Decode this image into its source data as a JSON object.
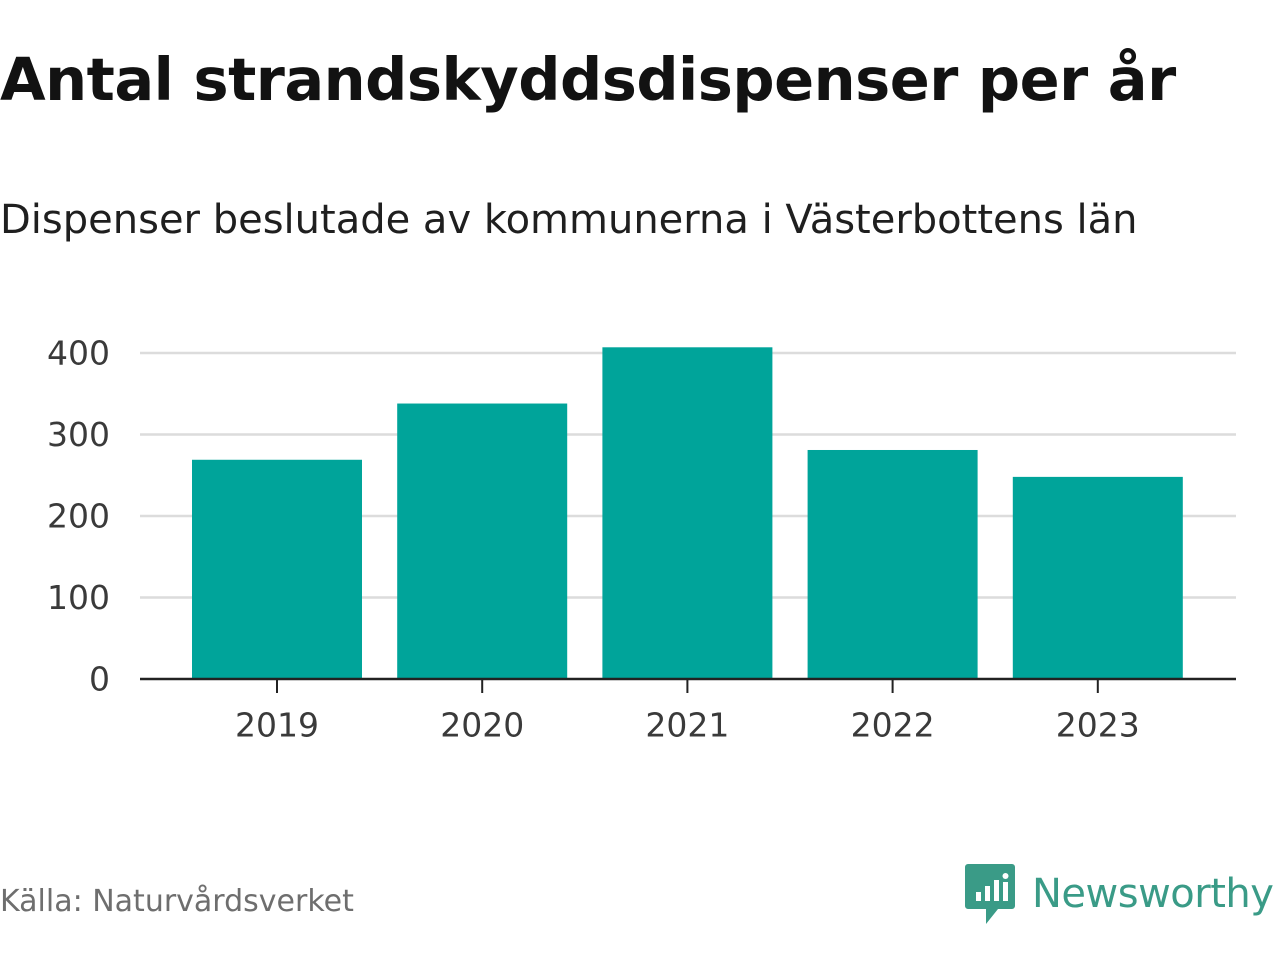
{
  "title": "Antal strandskyddsdispenser per år",
  "subtitle": "Dispenser beslutade av kommunerna i Västerbottens län",
  "source": "Källa: Naturvårdsverket",
  "brand": {
    "name": "Newsworthy",
    "icon": "newsworthy-logo-icon",
    "color": "#3a9b87"
  },
  "chart_data": {
    "type": "bar",
    "title": "Antal strandskyddsdispenser per år",
    "subtitle": "Dispenser beslutade av kommunerna i Västerbottens län",
    "xlabel": "",
    "ylabel": "",
    "categories": [
      "2019",
      "2020",
      "2021",
      "2022",
      "2023"
    ],
    "values": [
      269,
      338,
      407,
      281,
      248
    ],
    "ylim": [
      0,
      400
    ],
    "yticks": [
      0,
      100,
      200,
      300,
      400
    ],
    "grid": true,
    "bar_color": "#00a49a",
    "legend": "none"
  }
}
